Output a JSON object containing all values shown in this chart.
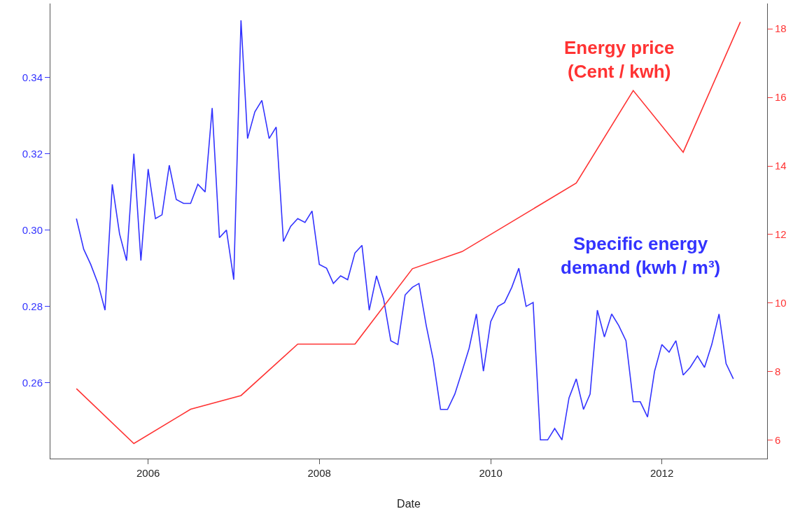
{
  "chart_data": {
    "type": "line",
    "xlabel": "Date",
    "xlim": [
      "2004-11-10",
      "2013-03-25"
    ],
    "xticks": [
      {
        "value": "2006",
        "label": "2006"
      },
      {
        "value": "2008",
        "label": "2008"
      },
      {
        "value": "2010",
        "label": "2010"
      },
      {
        "value": "2012",
        "label": "2012"
      }
    ],
    "ylim": [
      0.2401,
      0.3594
    ],
    "yticks": [
      0.26,
      0.28,
      {
        "value": 0.3,
        "label": "0.30"
      },
      0.32,
      0.34
    ],
    "y2lim": [
      5.46,
      18.74
    ],
    "y2ticks": [
      6,
      8,
      10,
      12,
      14,
      16,
      18
    ],
    "marker": "none",
    "line_style": "solid",
    "series": [
      {
        "name": "Specific energy\ndemand (kwh / m³)",
        "color": "#3333ff",
        "x": [
          "2005-03",
          "2005-04",
          "2005-05",
          "2005-06",
          "2005-07",
          "2005-08",
          "2005-09",
          "2005-10",
          "2005-11",
          "2005-12",
          "2006-01",
          "2006-02",
          "2006-03",
          "2006-04",
          "2006-05",
          "2006-06",
          "2006-07",
          "2006-08",
          "2006-09",
          "2006-10",
          "2006-11",
          "2006-12",
          "2007-01",
          "2007-02",
          "2007-03",
          "2007-04",
          "2007-05",
          "2007-06",
          "2007-07",
          "2007-08",
          "2007-09",
          "2007-10",
          "2007-11",
          "2007-12",
          "2008-01",
          "2008-02",
          "2008-03",
          "2008-04",
          "2008-05",
          "2008-06",
          "2008-07",
          "2008-08",
          "2008-09",
          "2008-10",
          "2008-11",
          "2008-12",
          "2009-01",
          "2009-02",
          "2009-03",
          "2009-04",
          "2009-05",
          "2009-06",
          "2009-07",
          "2009-08",
          "2009-09",
          "2009-10",
          "2009-11",
          "2009-12",
          "2010-01",
          "2010-02",
          "2010-03",
          "2010-04",
          "2010-05",
          "2010-06",
          "2010-07",
          "2010-08",
          "2010-09",
          "2010-10",
          "2010-11",
          "2010-12",
          "2011-01",
          "2011-02",
          "2011-03",
          "2011-04",
          "2011-05",
          "2011-06",
          "2011-07",
          "2011-08",
          "2011-09",
          "2011-10",
          "2011-11",
          "2011-12",
          "2012-01",
          "2012-02",
          "2012-03",
          "2012-04",
          "2012-05",
          "2012-06",
          "2012-07",
          "2012-08",
          "2012-09",
          "2012-10",
          "2012-11"
        ],
        "values": [
          0.303,
          0.295,
          0.291,
          0.286,
          0.279,
          0.312,
          0.299,
          0.292,
          0.32,
          0.292,
          0.316,
          0.303,
          0.304,
          0.317,
          0.308,
          0.307,
          0.307,
          0.312,
          0.31,
          0.332,
          0.298,
          0.3,
          0.287,
          0.355,
          0.324,
          0.331,
          0.334,
          0.324,
          0.327,
          0.297,
          0.301,
          0.303,
          0.302,
          0.305,
          0.291,
          0.29,
          0.286,
          0.288,
          0.287,
          0.294,
          0.296,
          0.279,
          0.288,
          0.282,
          0.271,
          0.27,
          0.283,
          0.285,
          0.286,
          0.275,
          0.266,
          0.253,
          0.253,
          0.257,
          0.263,
          0.269,
          0.278,
          0.263,
          0.276,
          0.28,
          0.281,
          0.285,
          0.29,
          0.28,
          0.281,
          0.245,
          0.245,
          0.248,
          0.245,
          0.256,
          0.261,
          0.253,
          0.257,
          0.279,
          0.272,
          0.278,
          0.275,
          0.271,
          0.255,
          0.255,
          0.251,
          0.263,
          0.27,
          0.268,
          0.271,
          0.262,
          0.264,
          0.267,
          0.264,
          0.27,
          0.278,
          0.265,
          0.261
        ]
      },
      {
        "name": "Energy price\n(Cent / kwh)",
        "color": "#ff3333",
        "axis": "y2",
        "x": [
          "2005-03",
          "2005-11",
          "2006-07",
          "2007-02",
          "2007-10",
          "2008-06",
          "2009-02",
          "2009-09",
          "2011-01",
          "2011-09",
          "2012-04",
          "2012-12"
        ],
        "values": [
          7.5,
          5.9,
          6.9,
          7.3,
          8.8,
          8.8,
          11.0,
          11.5,
          13.5,
          16.2,
          14.4,
          18.2
        ]
      }
    ]
  }
}
